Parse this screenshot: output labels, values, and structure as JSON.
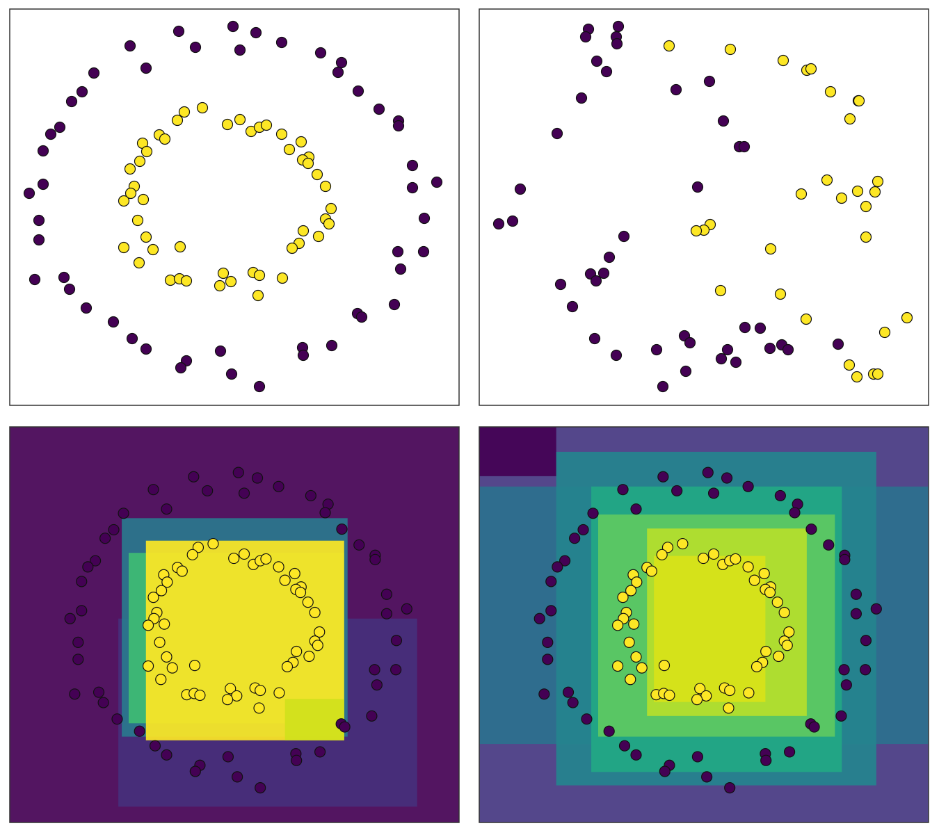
{
  "chart_data": [
    {
      "type": "scatter",
      "xlim": [
        0,
        646
      ],
      "ylim": [
        0,
        570
      ],
      "series": [
        {
          "color": "#440154",
          "x": [
            243,
            321,
            354,
            173,
            267,
            331,
            391,
            447,
            477,
            121,
            196,
            472,
            104,
            89,
            501,
            531,
            559,
            559,
            72,
            59,
            48,
            579,
            48,
            28,
            579,
            614,
            42,
            596,
            42,
            558,
            595,
            562,
            36,
            78,
            86,
            553,
            110,
            500,
            506,
            149,
            176,
            196,
            421,
            463,
            422,
            303,
            254,
            246,
            319,
            359
          ],
          "y": [
            538,
            545,
            536,
            517,
            515,
            511,
            522,
            507,
            493,
            478,
            485,
            479,
            451,
            437,
            452,
            426,
            409,
            402,
            400,
            390,
            366,
            345,
            318,
            305,
            313,
            321,
            266,
            269,
            238,
            221,
            221,
            196,
            181,
            184,
            167,
            145,
            140,
            132,
            127,
            120,
            96,
            81,
            83,
            86,
            72,
            78,
            64,
            54,
            45,
            27
          ]
        },
        {
          "color": "#fde725",
          "x": [
            277,
            251,
            241,
            313,
            331,
            347,
            359,
            369,
            391,
            215,
            223,
            191,
            197,
            419,
            402,
            430,
            421,
            429,
            187,
            173,
            442,
            179,
            454,
            174,
            164,
            192,
            462,
            454,
            459,
            184,
            422,
            196,
            444,
            416,
            406,
            164,
            206,
            245,
            186,
            231,
            244,
            254,
            307,
            318,
            302,
            350,
            359,
            392,
            357
          ],
          "y": [
            428,
            422,
            410,
            404,
            411,
            394,
            400,
            403,
            390,
            389,
            383,
            377,
            365,
            379,
            368,
            357,
            353,
            348,
            351,
            340,
            332,
            315,
            315,
            305,
            294,
            296,
            283,
            268,
            261,
            266,
            251,
            242,
            243,
            233,
            226,
            227,
            224,
            228,
            205,
            180,
            182,
            179,
            190,
            178,
            172,
            191,
            187,
            183,
            158
          ]
        }
      ]
    },
    {
      "type": "scatter",
      "xlim": [
        0,
        646
      ],
      "ylim": [
        0,
        570
      ],
      "series": [
        {
          "color": "#440154",
          "x": [
            157,
            200,
            153,
            197,
            198,
            169,
            183,
            331,
            283,
            147,
            351,
            112,
            374,
            381,
            314,
            59,
            28,
            48,
            208,
            187,
            160,
            179,
            168,
            117,
            134,
            166,
            197,
            255,
            295,
            303,
            382,
            404,
            357,
            348,
            369,
            418,
            435,
            444,
            516,
            297,
            264
          ],
          "y": [
            541,
            545,
            530,
            530,
            520,
            495,
            480,
            466,
            454,
            442,
            409,
            391,
            372,
            372,
            314,
            311,
            261,
            265,
            243,
            213,
            189,
            190,
            179,
            174,
            142,
            96,
            72,
            80,
            100,
            90,
            112,
            111,
            80,
            67,
            62,
            82,
            87,
            80,
            88,
            49,
            27
          ]
        },
        {
          "color": "#fde725",
          "x": [
            273,
            361,
            437,
            471,
            477,
            505,
            545,
            546,
            533,
            500,
            573,
            544,
            463,
            569,
            521,
            556,
            332,
            323,
            312,
            556,
            419,
            347,
            433,
            470,
            615,
            583,
            532,
            543,
            567,
            573
          ],
          "y": [
            517,
            512,
            496,
            482,
            484,
            451,
            438,
            438,
            412,
            324,
            322,
            308,
            304,
            307,
            298,
            286,
            260,
            252,
            251,
            242,
            225,
            165,
            160,
            124,
            126,
            105,
            58,
            41,
            45,
            45
          ]
        }
      ]
    },
    {
      "type": "scatter",
      "xlim": [
        -77,
        705
      ],
      "ylim": [
        -30,
        620
      ],
      "regions": [
        {
          "x": [
            -77,
            705
          ],
          "y": [
            -30,
            620
          ],
          "color": "#440154"
        },
        {
          "x": [
            112,
            632
          ],
          "y": [
            -4,
            305
          ],
          "color": "#46307c"
        },
        {
          "x": [
            118,
            511
          ],
          "y": [
            111,
            470
          ],
          "color": "#2a788e"
        },
        {
          "x": [
            130,
            505
          ],
          "y": [
            133,
            413
          ],
          "color": "#3fbc73"
        },
        {
          "x": [
            160,
            505
          ],
          "y": [
            105,
            433
          ],
          "color": "#fde725"
        },
        {
          "x": [
            402,
            505
          ],
          "y": [
            105,
            173
          ],
          "color": "#d0e11c"
        }
      ],
      "series": [
        {
          "color": "#440154",
          "x": [
            243,
            321,
            354,
            173,
            267,
            331,
            391,
            447,
            477,
            121,
            196,
            472,
            104,
            89,
            501,
            531,
            559,
            559,
            72,
            59,
            48,
            579,
            48,
            28,
            579,
            614,
            42,
            596,
            42,
            558,
            595,
            562,
            36,
            78,
            86,
            553,
            110,
            500,
            506,
            149,
            176,
            196,
            421,
            463,
            422,
            303,
            254,
            246,
            319,
            359
          ],
          "y": [
            538,
            545,
            536,
            517,
            515,
            511,
            522,
            507,
            493,
            478,
            485,
            479,
            451,
            437,
            452,
            426,
            409,
            402,
            400,
            390,
            366,
            345,
            318,
            305,
            313,
            321,
            266,
            269,
            238,
            221,
            221,
            196,
            181,
            184,
            167,
            145,
            140,
            132,
            127,
            120,
            96,
            81,
            83,
            86,
            72,
            78,
            64,
            54,
            45,
            27
          ]
        },
        {
          "color": "#fde725",
          "x": [
            277,
            251,
            241,
            313,
            331,
            347,
            359,
            369,
            391,
            215,
            223,
            191,
            197,
            419,
            402,
            430,
            421,
            429,
            187,
            173,
            442,
            179,
            454,
            174,
            164,
            192,
            462,
            454,
            459,
            184,
            422,
            196,
            444,
            416,
            406,
            164,
            206,
            245,
            186,
            231,
            244,
            254,
            307,
            318,
            302,
            350,
            359,
            392,
            357
          ],
          "y": [
            428,
            422,
            410,
            404,
            411,
            394,
            400,
            403,
            390,
            389,
            383,
            377,
            365,
            379,
            368,
            357,
            353,
            348,
            351,
            340,
            332,
            315,
            315,
            305,
            294,
            296,
            283,
            268,
            261,
            266,
            251,
            242,
            243,
            233,
            226,
            227,
            224,
            228,
            205,
            180,
            182,
            179,
            190,
            178,
            172,
            191,
            187,
            183,
            158
          ]
        }
      ]
    },
    {
      "type": "scatter",
      "xlim": [
        -77,
        705
      ],
      "ylim": [
        -30,
        620
      ],
      "regions": [
        {
          "x": [
            -77,
            705
          ],
          "y": [
            -30,
            620
          ],
          "color": "#453781"
        },
        {
          "x": [
            -77,
            57
          ],
          "y": [
            539,
            620
          ],
          "color": "#440154"
        },
        {
          "x": [
            -77,
            705
          ],
          "y": [
            99,
            522
          ],
          "color": "#2c718e"
        },
        {
          "x": [
            57,
            614
          ],
          "y": [
            31,
            579
          ],
          "color": "#25848e"
        },
        {
          "x": [
            118,
            554
          ],
          "y": [
            53,
            522
          ],
          "color": "#22a884"
        },
        {
          "x": [
            130,
            542
          ],
          "y": [
            111,
            476
          ],
          "color": "#5ec962"
        },
        {
          "x": [
            215,
            493
          ],
          "y": [
            145,
            453
          ],
          "color": "#b5de2b"
        },
        {
          "x": [
            227,
            421
          ],
          "y": [
            168,
            408
          ],
          "color": "#d8e219"
        }
      ],
      "series": [
        {
          "color": "#440154",
          "x": [
            243,
            321,
            354,
            173,
            267,
            331,
            391,
            447,
            477,
            121,
            196,
            472,
            104,
            89,
            501,
            531,
            559,
            559,
            72,
            59,
            48,
            579,
            48,
            28,
            579,
            614,
            42,
            596,
            42,
            558,
            595,
            562,
            36,
            78,
            86,
            553,
            110,
            500,
            506,
            149,
            176,
            196,
            421,
            463,
            422,
            303,
            254,
            246,
            319,
            359
          ],
          "y": [
            538,
            545,
            536,
            517,
            515,
            511,
            522,
            507,
            493,
            478,
            485,
            479,
            451,
            437,
            452,
            426,
            409,
            402,
            400,
            390,
            366,
            345,
            318,
            305,
            313,
            321,
            266,
            269,
            238,
            221,
            221,
            196,
            181,
            184,
            167,
            145,
            140,
            132,
            127,
            120,
            96,
            81,
            83,
            86,
            72,
            78,
            64,
            54,
            45,
            27
          ]
        },
        {
          "color": "#fde725",
          "x": [
            277,
            251,
            241,
            313,
            331,
            347,
            359,
            369,
            391,
            215,
            223,
            191,
            197,
            419,
            402,
            430,
            421,
            429,
            187,
            173,
            442,
            179,
            454,
            174,
            164,
            192,
            462,
            454,
            459,
            184,
            422,
            196,
            444,
            416,
            406,
            164,
            206,
            245,
            186,
            231,
            244,
            254,
            307,
            318,
            302,
            350,
            359,
            392,
            357
          ],
          "y": [
            428,
            422,
            410,
            404,
            411,
            394,
            400,
            403,
            390,
            389,
            383,
            377,
            365,
            379,
            368,
            357,
            353,
            348,
            351,
            340,
            332,
            315,
            315,
            305,
            294,
            296,
            283,
            268,
            261,
            266,
            251,
            242,
            243,
            233,
            226,
            227,
            224,
            228,
            205,
            180,
            182,
            179,
            190,
            178,
            172,
            191,
            187,
            183,
            158
          ]
        }
      ]
    }
  ]
}
